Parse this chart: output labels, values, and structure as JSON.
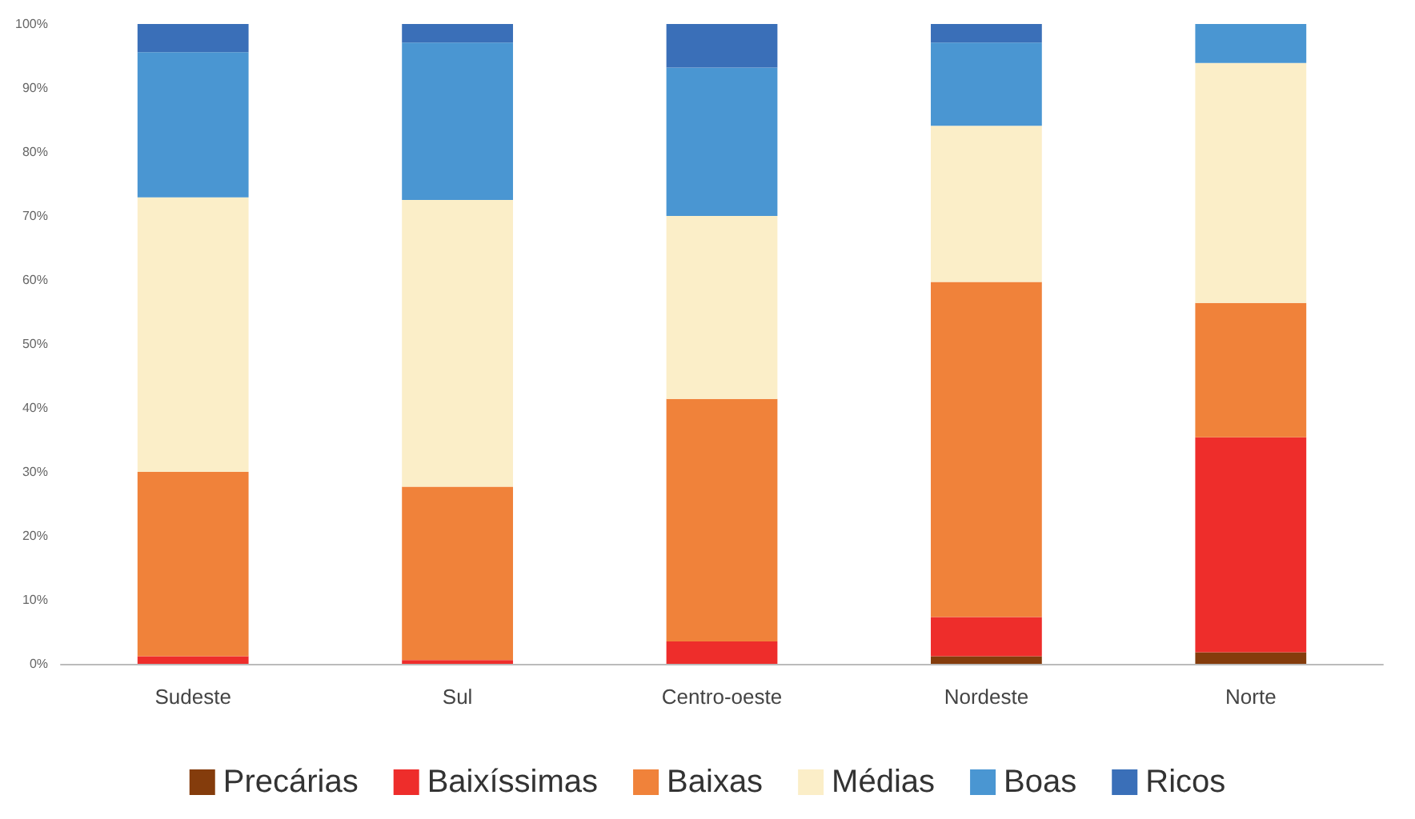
{
  "chart_data": {
    "type": "bar",
    "stacked": true,
    "categories": [
      "Sudeste",
      "Sul",
      "Centro-oeste",
      "Nordeste",
      "Norte"
    ],
    "series": [
      {
        "name": "Precárias",
        "color": "#843c0c",
        "values": [
          0,
          0,
          0,
          1.2,
          1.8
        ]
      },
      {
        "name": "Baixíssimas",
        "color": "#ee2d2b",
        "values": [
          1.2,
          0.6,
          3.5,
          6.1,
          33.6
        ]
      },
      {
        "name": "Baixas",
        "color": "#f0823a",
        "values": [
          28.8,
          27.1,
          37.9,
          52.4,
          21
        ]
      },
      {
        "name": "Médias",
        "color": "#fbeec8",
        "values": [
          42.9,
          44.8,
          28.6,
          24.4,
          37.5
        ]
      },
      {
        "name": "Boas",
        "color": "#4a96d2",
        "values": [
          22.7,
          24.6,
          23.2,
          13,
          6.1
        ]
      },
      {
        "name": "Ricos",
        "color": "#3a6fb8",
        "values": [
          4.4,
          2.9,
          6.8,
          2.9,
          0
        ]
      }
    ],
    "ylim": [
      0,
      100
    ],
    "yticks": [
      {
        "value": 0,
        "label": "0%"
      },
      {
        "value": 10,
        "label": "10%"
      },
      {
        "value": 20,
        "label": "20%"
      },
      {
        "value": 30,
        "label": "30%"
      },
      {
        "value": 40,
        "label": "40%"
      },
      {
        "value": 50,
        "label": "50%"
      },
      {
        "value": 60,
        "label": "60%"
      },
      {
        "value": 70,
        "label": "70%"
      },
      {
        "value": 80,
        "label": "80%"
      },
      {
        "value": 90,
        "label": "90%"
      },
      {
        "value": 100,
        "label": "100%"
      }
    ],
    "grid": false,
    "legend": "bottom"
  }
}
